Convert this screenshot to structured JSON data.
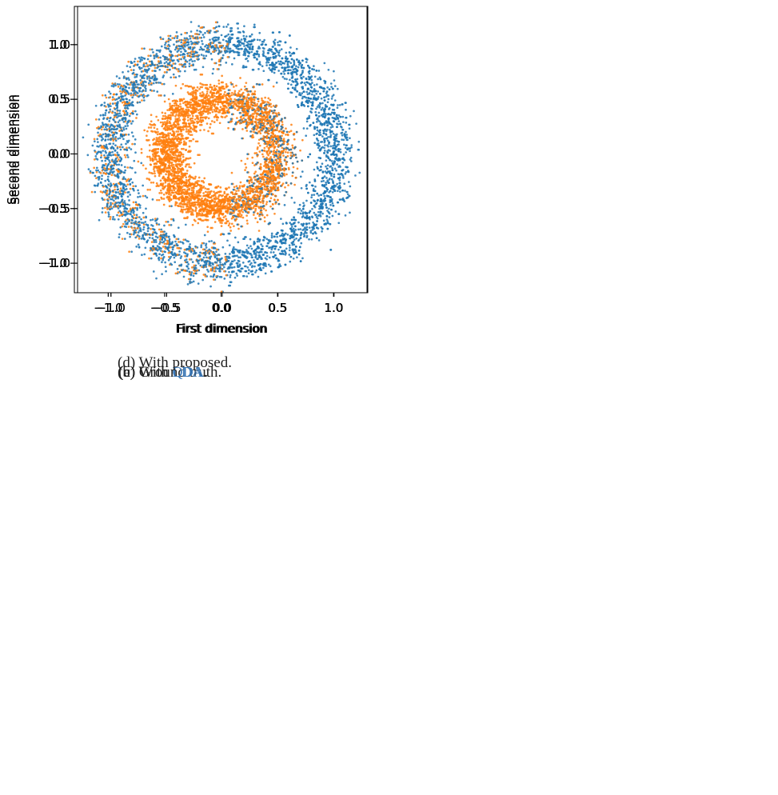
{
  "colors": {
    "outer": "#1f77b4",
    "inner": "#ff7f0e",
    "axis": "#000000"
  },
  "chart_data": [
    {
      "type": "scatter",
      "caption": {
        "prefix": "(a) Ground truth.",
        "acronym": "",
        "suffix": ""
      },
      "xlabel": "First dimension",
      "ylabel": "Second dimension",
      "xlim": [
        -1.3,
        1.3
      ],
      "ylim": [
        -1.27,
        1.35
      ],
      "xticks": [
        -1.0,
        -0.5,
        0.0,
        0.5,
        1.0
      ],
      "yticks": [
        -1.0,
        -0.5,
        0.0,
        0.5,
        1.0
      ],
      "grid": false,
      "legend": "none",
      "series": [
        {
          "color": "#1f77b4",
          "shape": "ring",
          "radius_mean": 1.0,
          "radius_noise": 0.1,
          "n": 1000,
          "rule": "outer"
        },
        {
          "color": "#ff7f0e",
          "shape": "ring",
          "radius_mean": 0.5,
          "radius_noise": 0.1,
          "n": 1000,
          "rule": "inner"
        }
      ]
    },
    {
      "type": "scatter",
      "caption": {
        "prefix": "(b) With ",
        "acronym": "LDA",
        "suffix": "."
      },
      "xlabel": "First dimension",
      "ylabel": "Second dimension",
      "xlim": [
        -1.3,
        1.3
      ],
      "ylim": [
        -1.27,
        1.35
      ],
      "xticks": [
        -1.0,
        -0.5,
        0.0,
        0.5,
        1.0
      ],
      "yticks": [
        -1.0,
        -0.5,
        0.0,
        0.5,
        1.0
      ],
      "grid": false,
      "legend": "none",
      "series": [
        {
          "color": "#1f77b4",
          "shape": "ring",
          "rule": "right-of-line",
          "decision_boundary_x": 0.06
        },
        {
          "color": "#ff7f0e",
          "shape": "ring",
          "rule": "left-of-line",
          "decision_boundary_x": 0.06
        }
      ]
    },
    {
      "type": "scatter",
      "caption": {
        "prefix": "(c) With ",
        "acronym": "QDA",
        "suffix": "."
      },
      "xlabel": "First dimension",
      "ylabel": "Second dimension",
      "xlim": [
        -1.3,
        1.3
      ],
      "ylim": [
        -1.27,
        1.35
      ],
      "xticks": [
        -1.0,
        -0.5,
        0.0,
        0.5,
        1.0
      ],
      "yticks": [
        -1.0,
        -0.5,
        0.0,
        0.5,
        1.0
      ],
      "grid": false,
      "legend": "none",
      "series": [
        {
          "color": "#1f77b4",
          "shape": "ring",
          "radius_mean": 1.0,
          "radius_noise": 0.1,
          "n": 1000,
          "rule": "outer"
        },
        {
          "color": "#ff7f0e",
          "shape": "ring",
          "radius_mean": 0.5,
          "radius_noise": 0.1,
          "n": 1000,
          "rule": "inner"
        }
      ]
    },
    {
      "type": "scatter",
      "caption": {
        "prefix": "(d) With proposed.",
        "acronym": "",
        "suffix": ""
      },
      "xlabel": "First dimension",
      "ylabel": "Second dimension",
      "xlim": [
        -1.3,
        1.3
      ],
      "ylim": [
        -1.27,
        1.35
      ],
      "xticks": [
        -1.0,
        -0.5,
        0.0,
        0.5,
        1.0
      ],
      "yticks": [
        -1.0,
        -0.5,
        0.0,
        0.5,
        1.0
      ],
      "grid": false,
      "legend": "none",
      "series": [
        {
          "color": "#1f77b4",
          "shape": "ring",
          "radius_mean": 1.0,
          "radius_noise": 0.1,
          "n": 1000,
          "rule": "outer"
        },
        {
          "color": "#ff7f0e",
          "shape": "ring",
          "radius_mean": 0.5,
          "radius_noise": 0.1,
          "n": 1000,
          "rule": "inner"
        }
      ]
    }
  ]
}
